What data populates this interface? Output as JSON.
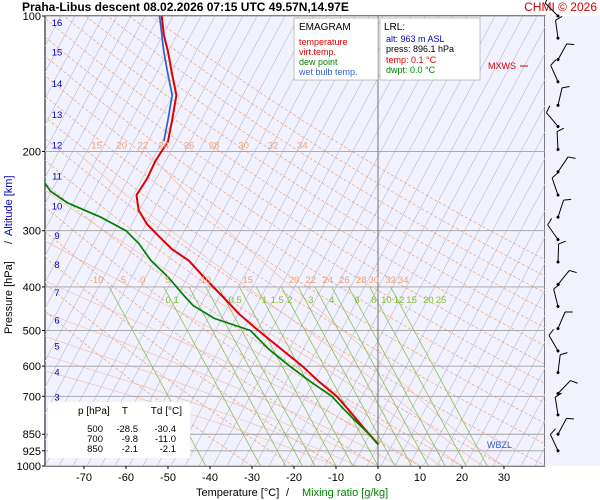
{
  "header": {
    "title": "Praha-Libus   descent   08.02.2026 07:15 UTC  49.57N,14.97E",
    "credit": "CHMI © 2026"
  },
  "legend": {
    "heading": "EMAGRAM",
    "items": [
      {
        "label": "temperature",
        "color": "#e00000"
      },
      {
        "label": "virt.temp.",
        "color": "#e00000"
      },
      {
        "label": "dew point",
        "color": "#008000"
      },
      {
        "label": "wet bulb temp.",
        "color": "#3060d0"
      }
    ]
  },
  "lrl": {
    "heading": "LRL:",
    "alt": "alt: 963 m ASL",
    "press": "press: 896.1 hPa",
    "temp": "temp: 0.1 °C",
    "dwpt": "dwpt: 0.0 °C"
  },
  "table": {
    "headers": [
      "p [hPa]",
      "T",
      "Td [°C]"
    ],
    "rows": [
      [
        "500",
        "-28.5",
        "-30.4"
      ],
      [
        "700",
        "-9.8",
        "-11.0"
      ],
      [
        "850",
        "-2.1",
        "-2.1"
      ]
    ]
  },
  "markers": {
    "mxws": "MXWS",
    "wbzl": "WBZL"
  },
  "chart_data": {
    "type": "line",
    "xlabel": "Temperature [°C]",
    "xlabel2": "Mixing ratio [g/kg]",
    "xlabel_sep": "/",
    "ylabel": "Pressure [hPa]",
    "ylabel2": "Altitude [km]",
    "ylabel_sep": "/",
    "xlim": [
      -80,
      40
    ],
    "ylim": [
      1000,
      100
    ],
    "x_ticks": [
      -70,
      -60,
      -50,
      -40,
      -30,
      -20,
      -10,
      0,
      10,
      20,
      30
    ],
    "p_ticks": [
      100,
      200,
      300,
      400,
      500,
      600,
      700,
      850,
      925,
      1000
    ],
    "km_ticks": [
      1,
      2,
      3,
      4,
      5,
      6,
      7,
      8,
      9,
      10,
      11,
      12,
      13,
      14,
      15,
      16
    ],
    "theta_labels_200": [
      "15",
      "20",
      "22",
      "24",
      "26",
      "28",
      "30",
      "32",
      "34"
    ],
    "theta_labels_400": [
      "-10",
      "-5",
      "0",
      "5",
      "10",
      "15",
      "20",
      "22",
      "24",
      "26",
      "28",
      "30",
      "32",
      "34"
    ],
    "mixing_ratio_labels": [
      "0.1",
      "0.5",
      "1",
      "1.5",
      "2",
      "3",
      "4",
      "6",
      "8",
      "10",
      "12",
      "15",
      "20",
      "25"
    ],
    "series": [
      {
        "name": "temperature",
        "color": "#e00000",
        "points": [
          [
            100,
            -51.5
          ],
          [
            110,
            -51
          ],
          [
            120,
            -50
          ],
          [
            135,
            -49
          ],
          [
            150,
            -48
          ],
          [
            170,
            -49
          ],
          [
            190,
            -50
          ],
          [
            210,
            -53
          ],
          [
            230,
            -55
          ],
          [
            250,
            -57.5
          ],
          [
            270,
            -57
          ],
          [
            290,
            -55
          ],
          [
            310,
            -52
          ],
          [
            330,
            -49
          ],
          [
            350,
            -45
          ],
          [
            380,
            -41.5
          ],
          [
            420,
            -37
          ],
          [
            460,
            -33
          ],
          [
            500,
            -28.5
          ],
          [
            550,
            -23
          ],
          [
            600,
            -18
          ],
          [
            650,
            -14
          ],
          [
            700,
            -9.8
          ],
          [
            750,
            -7
          ],
          [
            800,
            -4.5
          ],
          [
            850,
            -2.1
          ],
          [
            896,
            0.1
          ]
        ]
      },
      {
        "name": "dew point",
        "color": "#008000",
        "points": [
          [
            230,
            -80
          ],
          [
            245,
            -78
          ],
          [
            260,
            -74
          ],
          [
            280,
            -66
          ],
          [
            300,
            -60
          ],
          [
            320,
            -57
          ],
          [
            350,
            -54
          ],
          [
            380,
            -50
          ],
          [
            420,
            -46
          ],
          [
            440,
            -44
          ],
          [
            470,
            -39
          ],
          [
            500,
            -30.4
          ],
          [
            550,
            -26
          ],
          [
            600,
            -21
          ],
          [
            650,
            -16
          ],
          [
            700,
            -11
          ],
          [
            750,
            -8
          ],
          [
            800,
            -5
          ],
          [
            850,
            -2.1
          ],
          [
            896,
            0
          ]
        ]
      },
      {
        "name": "wet bulb temp.",
        "color": "#3060d0",
        "points": [
          [
            100,
            -52
          ],
          [
            120,
            -51
          ],
          [
            135,
            -50
          ],
          [
            150,
            -49
          ],
          [
            170,
            -50
          ],
          [
            190,
            -51
          ]
        ]
      }
    ]
  }
}
